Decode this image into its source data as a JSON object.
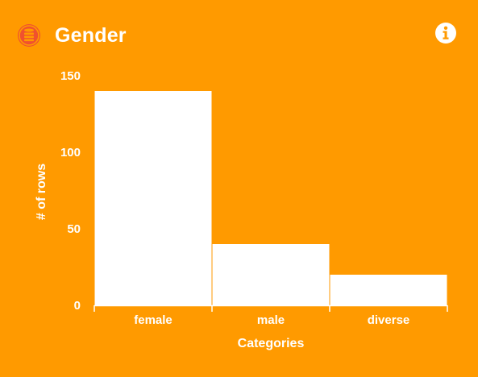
{
  "card": {
    "title": "Gender",
    "icons": {
      "title_icon": "database-icon",
      "info_icon": "info-icon"
    },
    "colors": {
      "background": "#FF9A00",
      "bar": "#FFFFFF",
      "icon_accent": "#F0522E"
    }
  },
  "chart_data": {
    "type": "bar",
    "categories": [
      "female",
      "male",
      "diverse"
    ],
    "values": [
      140,
      40,
      20
    ],
    "xlabel": "Categories",
    "ylabel": "# of rows",
    "ylim": [
      0,
      150
    ],
    "yticks": [
      0,
      50,
      100,
      150
    ],
    "grid": false
  }
}
